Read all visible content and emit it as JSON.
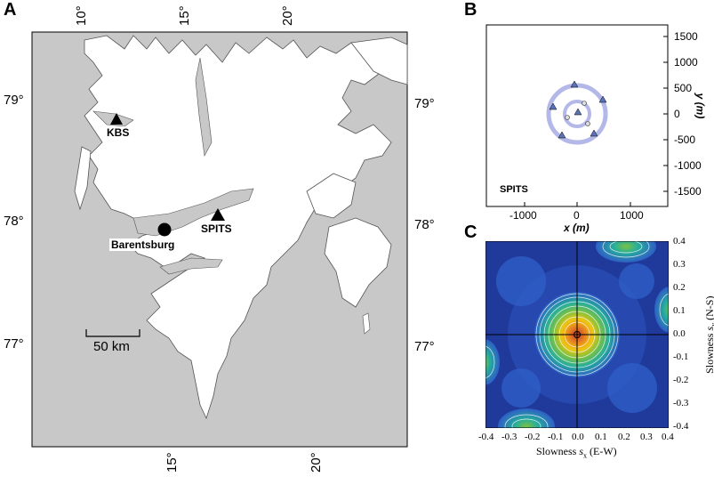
{
  "panel_a": {
    "letter": "A",
    "lon_labels_top": [
      "10°",
      "15°",
      "20°"
    ],
    "lon_labels_bottom": [
      "15°",
      "20°"
    ],
    "lat_labels_left": [
      "79°",
      "78°",
      "77°"
    ],
    "lat_labels_right": [
      "79°",
      "78°",
      "77°"
    ],
    "stations": [
      {
        "label": "KBS",
        "symbol": "triangle"
      },
      {
        "label": "SPITS",
        "symbol": "triangle"
      },
      {
        "label": "Barentsburg",
        "symbol": "circle"
      }
    ],
    "scale_bar_label": "50 km",
    "colors": {
      "land": "#ffffff",
      "sea": "#c8c8c8",
      "coast": "#555555"
    }
  },
  "panel_b": {
    "letter": "B",
    "array_label": "SPITS",
    "x_ticks": [
      "-1000",
      "0",
      "1000"
    ],
    "y_ticks": [
      "1500",
      "1000",
      "500",
      "0",
      "-500",
      "-1000",
      "-1500"
    ],
    "xlabel": "x (m)",
    "ylabel": "y (m)",
    "colors": {
      "ring": "#b4b8e8",
      "triangle": "#5a73b6"
    }
  },
  "panel_c": {
    "letter": "C",
    "x_ticks": [
      "-0.4",
      "-0.3",
      "-0.2",
      "-0.1",
      "0.0",
      "0.1",
      "0.2",
      "0.3",
      "0.4"
    ],
    "y_ticks": [
      "0.4",
      "0.3",
      "0.2",
      "0.1",
      "0.0",
      "-0.1",
      "-0.2",
      "-0.3",
      "-0.4"
    ],
    "xlabel_prefix": "Slowness ",
    "xlabel_var": "s",
    "xlabel_sub": "x",
    "xlabel_suffix": " (E-W)",
    "ylabel_prefix": "Slowness ",
    "ylabel_var": "s",
    "ylabel_sub": "y",
    "ylabel_suffix": " (N-S)",
    "colors": {
      "background": "#1f3a9a",
      "peak": "#c0392b"
    }
  }
}
